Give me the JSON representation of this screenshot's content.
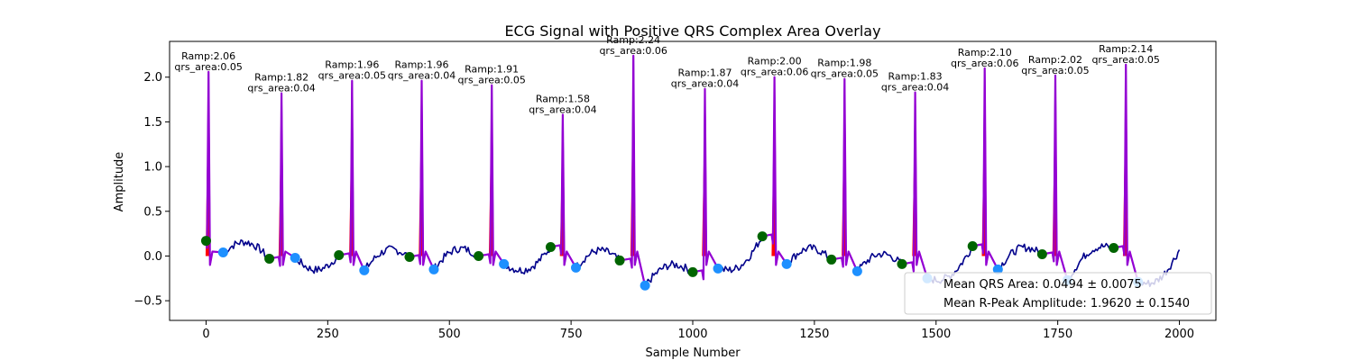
{
  "chart_data": {
    "type": "line",
    "title": "ECG Signal with Positive QRS Complex Area Overlay",
    "xlabel": "Sample Number",
    "ylabel": "Amplitude",
    "xlim": [
      -75,
      2075
    ],
    "ylim": [
      -0.72,
      2.4
    ],
    "x_ticks": [
      0,
      250,
      500,
      750,
      1000,
      1250,
      1500,
      1750,
      2000
    ],
    "y_ticks": [
      -0.5,
      0.0,
      0.5,
      1.0,
      1.5,
      2.0
    ],
    "grid": false,
    "colors": {
      "signal": "#00008b",
      "qrs_segment": "#9400d3",
      "qrs_area_fill": "#ff0000",
      "onset_marker": "#006400",
      "offset_marker": "#1e90ff"
    },
    "r_peaks": [
      {
        "x": 5,
        "r_amp": 2.06,
        "ramp_label": "Ramp:2.06",
        "area_label": "qrs_area:0.05",
        "onset": [
          0,
          0.17
        ],
        "offset": [
          35,
          0.04
        ]
      },
      {
        "x": 155,
        "r_amp": 1.82,
        "ramp_label": "Ramp:1.82",
        "area_label": "qrs_area:0.04",
        "onset": [
          130,
          -0.03
        ],
        "offset": [
          183,
          -0.02
        ]
      },
      {
        "x": 300,
        "r_amp": 1.96,
        "ramp_label": "Ramp:1.96",
        "area_label": "qrs_area:0.05",
        "onset": [
          273,
          0.01
        ],
        "offset": [
          325,
          -0.16
        ]
      },
      {
        "x": 443,
        "r_amp": 1.96,
        "ramp_label": "Ramp:1.96",
        "area_label": "qrs_area:0.04",
        "onset": [
          418,
          -0.01
        ],
        "offset": [
          468,
          -0.15
        ]
      },
      {
        "x": 587,
        "r_amp": 1.91,
        "ramp_label": "Ramp:1.91",
        "area_label": "qrs_area:0.05",
        "onset": [
          560,
          0.0
        ],
        "offset": [
          612,
          -0.09
        ]
      },
      {
        "x": 733,
        "r_amp": 1.58,
        "ramp_label": "Ramp:1.58",
        "area_label": "qrs_area:0.04",
        "onset": [
          708,
          0.1
        ],
        "offset": [
          760,
          -0.13
        ]
      },
      {
        "x": 878,
        "r_amp": 2.24,
        "ramp_label": "Ramp:2.24",
        "area_label": "qrs_area:0.06",
        "onset": [
          850,
          -0.05
        ],
        "offset": [
          902,
          -0.33
        ]
      },
      {
        "x": 1025,
        "r_amp": 1.87,
        "ramp_label": "Ramp:1.87",
        "area_label": "qrs_area:0.04",
        "onset": [
          1000,
          -0.18
        ],
        "offset": [
          1052,
          -0.14
        ]
      },
      {
        "x": 1168,
        "r_amp": 2.0,
        "ramp_label": "Ramp:2.00",
        "area_label": "qrs_area:0.06",
        "onset": [
          1143,
          0.22
        ],
        "offset": [
          1193,
          -0.09
        ]
      },
      {
        "x": 1312,
        "r_amp": 1.98,
        "ramp_label": "Ramp:1.98",
        "area_label": "qrs_area:0.05",
        "onset": [
          1285,
          -0.04
        ],
        "offset": [
          1338,
          -0.17
        ]
      },
      {
        "x": 1457,
        "r_amp": 1.83,
        "ramp_label": "Ramp:1.83",
        "area_label": "qrs_area:0.04",
        "onset": [
          1430,
          -0.09
        ],
        "offset": [
          1482,
          -0.25
        ]
      },
      {
        "x": 1600,
        "r_amp": 2.1,
        "ramp_label": "Ramp:2.10",
        "area_label": "qrs_area:0.06",
        "onset": [
          1575,
          0.11
        ],
        "offset": [
          1627,
          -0.15
        ]
      },
      {
        "x": 1745,
        "r_amp": 2.02,
        "ramp_label": "Ramp:2.02",
        "area_label": "qrs_area:0.05",
        "onset": [
          1718,
          0.02
        ],
        "offset": [
          1770,
          -0.27
        ]
      },
      {
        "x": 1890,
        "r_amp": 2.14,
        "ramp_label": "Ramp:2.14",
        "area_label": "qrs_area:0.05",
        "onset": [
          1865,
          0.09
        ],
        "offset": [
          1915,
          -0.29
        ]
      }
    ],
    "signal_end": 2000,
    "legend": {
      "placement": "lower right",
      "entries": [
        "Mean QRS Area: 0.0494 ± 0.0075",
        "Mean R-Peak Amplitude: 1.9620 ± 0.1540"
      ]
    }
  }
}
